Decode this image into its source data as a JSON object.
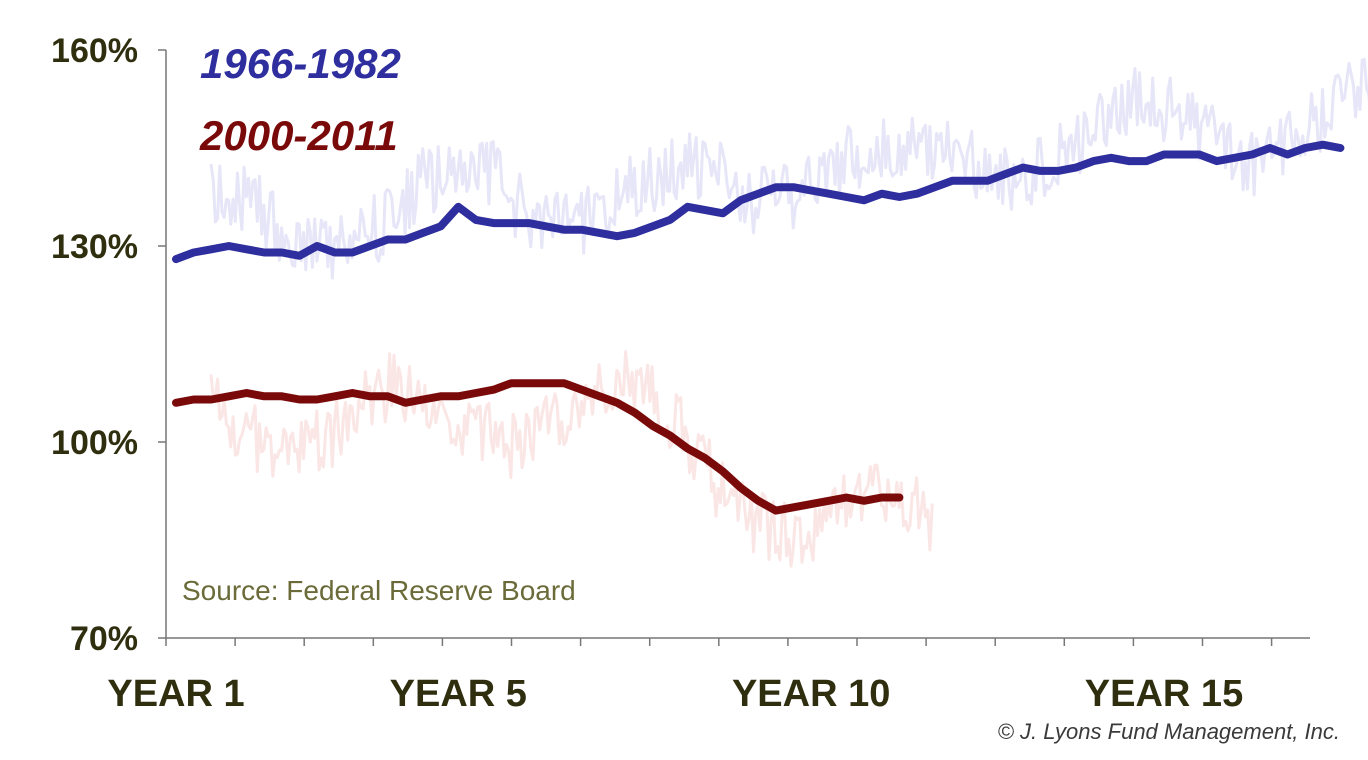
{
  "chart_data": {
    "type": "line",
    "ylim": [
      70,
      160
    ],
    "y_ticks": [
      {
        "value": 160,
        "label": "160%"
      },
      {
        "value": 130,
        "label": "130%"
      },
      {
        "value": 100,
        "label": "100%"
      },
      {
        "value": 70,
        "label": "70%"
      }
    ],
    "x_ticks": [
      {
        "value": 1,
        "label": "YEAR 1"
      },
      {
        "value": 5,
        "label": "YEAR 5"
      },
      {
        "value": 10,
        "label": "YEAR 10"
      },
      {
        "value": 15,
        "label": "YEAR 15"
      }
    ],
    "xlim": [
      1,
      17.5
    ],
    "series": [
      {
        "name": "1966-1982",
        "color": "#2e2e9e",
        "faint_color": "#e6e6f8",
        "x": [
          1.0,
          1.25,
          1.5,
          1.75,
          2.0,
          2.25,
          2.5,
          2.75,
          3.0,
          3.25,
          3.5,
          3.75,
          4.0,
          4.25,
          4.5,
          4.75,
          5.0,
          5.25,
          5.5,
          5.75,
          6.0,
          6.25,
          6.5,
          6.75,
          7.0,
          7.25,
          7.5,
          7.75,
          8.0,
          8.25,
          8.5,
          8.75,
          9.0,
          9.25,
          9.5,
          9.75,
          10.0,
          10.25,
          10.5,
          10.75,
          11.0,
          11.25,
          11.5,
          11.75,
          12.0,
          12.25,
          12.5,
          12.75,
          13.0,
          13.25,
          13.5,
          13.75,
          14.0,
          14.25,
          14.5,
          14.75,
          15.0,
          15.25,
          15.5,
          15.75,
          16.0,
          16.25,
          16.5,
          16.75,
          17.0,
          17.25,
          17.5
        ],
        "values": [
          128,
          129,
          129.5,
          130,
          129.5,
          129,
          129,
          128.5,
          130,
          129,
          129,
          130,
          131,
          131,
          132,
          133,
          136,
          134,
          133.5,
          133.5,
          133.5,
          133,
          132.5,
          132.5,
          132,
          131.5,
          132,
          133,
          134,
          136,
          135.5,
          135,
          137,
          138,
          139,
          139,
          138.5,
          138,
          137.5,
          137,
          138,
          137.5,
          138,
          139,
          140,
          140,
          140,
          141,
          142,
          141.5,
          141.5,
          142,
          143,
          143.5,
          143,
          143,
          144,
          144,
          144,
          143,
          143.5,
          144,
          145,
          144,
          145,
          145.5,
          145
        ]
      },
      {
        "name": "2000-2011",
        "color": "#7a0a0a",
        "faint_color": "#fbe6e6",
        "x": [
          1.0,
          1.25,
          1.5,
          1.75,
          2.0,
          2.25,
          2.5,
          2.75,
          3.0,
          3.25,
          3.5,
          3.75,
          4.0,
          4.25,
          4.5,
          4.75,
          5.0,
          5.25,
          5.5,
          5.75,
          6.0,
          6.25,
          6.5,
          6.75,
          7.0,
          7.25,
          7.5,
          7.75,
          8.0,
          8.25,
          8.5,
          8.75,
          9.0,
          9.25,
          9.5,
          9.75,
          10.0,
          10.25,
          10.5,
          10.75,
          11.0,
          11.25
        ],
        "values": [
          106,
          106.5,
          106.5,
          107,
          107.5,
          107,
          107,
          106.5,
          106.5,
          107,
          107.5,
          107,
          107,
          106,
          106.5,
          107,
          107,
          107.5,
          108,
          109,
          109,
          109,
          109,
          108,
          107,
          106,
          104.5,
          102.5,
          101,
          99,
          97.5,
          95.5,
          93,
          91,
          89.5,
          90,
          90.5,
          91,
          91.5,
          91,
          91.5,
          91.5
        ]
      }
    ],
    "annotations": [
      "Source: Federal Reserve Board"
    ],
    "footer": "© J. Lyons Fund Management, Inc.",
    "legend_placement": "top-left",
    "grid": false
  }
}
